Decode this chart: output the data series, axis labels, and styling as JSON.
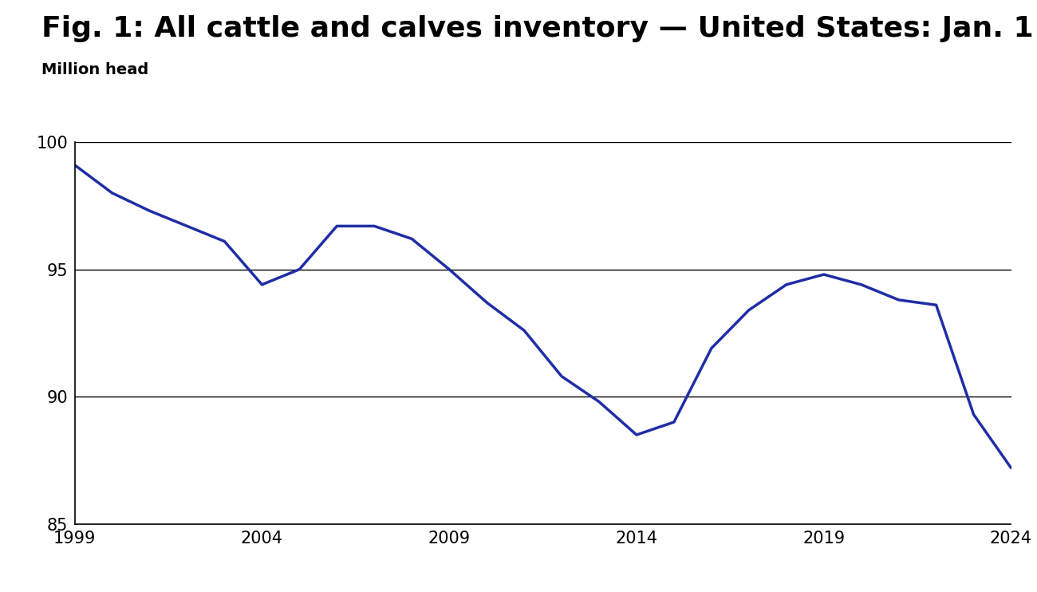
{
  "title": "Fig. 1: All cattle and calves inventory — United States: Jan. 1",
  "ylabel": "Million head",
  "years": [
    1999,
    2000,
    2001,
    2002,
    2003,
    2004,
    2005,
    2006,
    2007,
    2008,
    2009,
    2010,
    2011,
    2012,
    2013,
    2014,
    2015,
    2016,
    2017,
    2018,
    2019,
    2020,
    2021,
    2022,
    2023,
    2024
  ],
  "values": [
    99.1,
    98.0,
    97.3,
    96.7,
    96.1,
    94.4,
    95.0,
    96.7,
    96.7,
    96.2,
    95.0,
    93.7,
    92.6,
    90.8,
    89.8,
    88.5,
    89.0,
    91.9,
    93.4,
    94.4,
    94.8,
    94.4,
    93.8,
    93.6,
    89.3,
    87.2
  ],
  "line_color": "#1f2ea6",
  "line_width": 2.5,
  "xlim": [
    1999,
    2024
  ],
  "ylim": [
    85,
    100
  ],
  "yticks": [
    85,
    90,
    95,
    100
  ],
  "xticks": [
    1999,
    2004,
    2009,
    2014,
    2019,
    2024
  ],
  "background_color": "#ffffff",
  "title_fontsize": 26,
  "subtitle_fontsize": 14,
  "tick_fontsize": 15,
  "grid_color": "#000000",
  "grid_linewidth": 1.0,
  "spine_linewidth": 1.2
}
